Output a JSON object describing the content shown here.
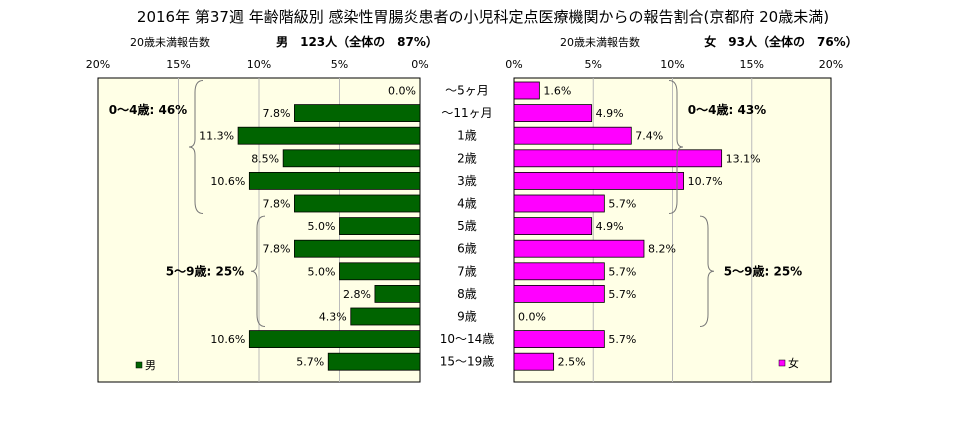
{
  "title": "2016年 第37週 年齢階級別 感染性胃腸炎患者の小児科定点医療機関からの報告割合(京都府 20歳未満)",
  "colors": {
    "male": "#006400",
    "female": "#ff00ff",
    "plot_bg": "#ffffe6"
  },
  "chart_data": [
    {
      "type": "bar",
      "orientation": "horizontal",
      "direction": "right-to-left",
      "header_left": "20歳未満報告数",
      "header_right": "男　123人（全体の　87%）",
      "legend": "男",
      "legend_position": "bottom-left",
      "xlim": [
        0,
        20
      ],
      "ticks": [
        "20%",
        "15%",
        "10%",
        "5%",
        "0%"
      ],
      "tick_values": [
        20,
        15,
        10,
        5,
        0
      ],
      "categories": [
        "～5ヶ月",
        "～11ヶ月",
        "1歳",
        "2歳",
        "3歳",
        "4歳",
        "5歳",
        "6歳",
        "7歳",
        "8歳",
        "9歳",
        "10～14歳",
        "15～19歳"
      ],
      "values": [
        0.0,
        7.8,
        11.3,
        8.5,
        10.6,
        7.8,
        5.0,
        7.8,
        5.0,
        2.8,
        4.3,
        10.6,
        5.7
      ],
      "value_labels": [
        "0.0%",
        "7.8%",
        "11.3%",
        "8.5%",
        "10.6%",
        "7.8%",
        "5.0%",
        "7.8%",
        "5.0%",
        "2.8%",
        "4.3%",
        "10.6%",
        "5.7%"
      ],
      "groups": [
        {
          "label": "0～4歳: 46%",
          "from": 0,
          "to": 5
        },
        {
          "label": "5～9歳: 25%",
          "from": 6,
          "to": 10
        }
      ]
    },
    {
      "type": "bar",
      "orientation": "horizontal",
      "direction": "left-to-right",
      "header_left": "20歳未満報告数",
      "header_right": "女　93人（全体の　76%）",
      "legend": "女",
      "legend_position": "bottom-right",
      "xlim": [
        0,
        20
      ],
      "ticks": [
        "0%",
        "5%",
        "10%",
        "15%",
        "20%"
      ],
      "tick_values": [
        0,
        5,
        10,
        15,
        20
      ],
      "categories": [
        "～5ヶ月",
        "～11ヶ月",
        "1歳",
        "2歳",
        "3歳",
        "4歳",
        "5歳",
        "6歳",
        "7歳",
        "8歳",
        "9歳",
        "10～14歳",
        "15～19歳"
      ],
      "values": [
        1.6,
        4.9,
        7.4,
        13.1,
        10.7,
        5.7,
        4.9,
        8.2,
        5.7,
        5.7,
        0.0,
        5.7,
        2.5
      ],
      "value_labels": [
        "1.6%",
        "4.9%",
        "7.4%",
        "13.1%",
        "10.7%",
        "5.7%",
        "4.9%",
        "8.2%",
        "5.7%",
        "5.7%",
        "0.0%",
        "5.7%",
        "2.5%"
      ],
      "groups": [
        {
          "label": "0～4歳: 43%",
          "from": 0,
          "to": 5
        },
        {
          "label": "5～9歳: 25%",
          "from": 6,
          "to": 10
        }
      ]
    }
  ]
}
